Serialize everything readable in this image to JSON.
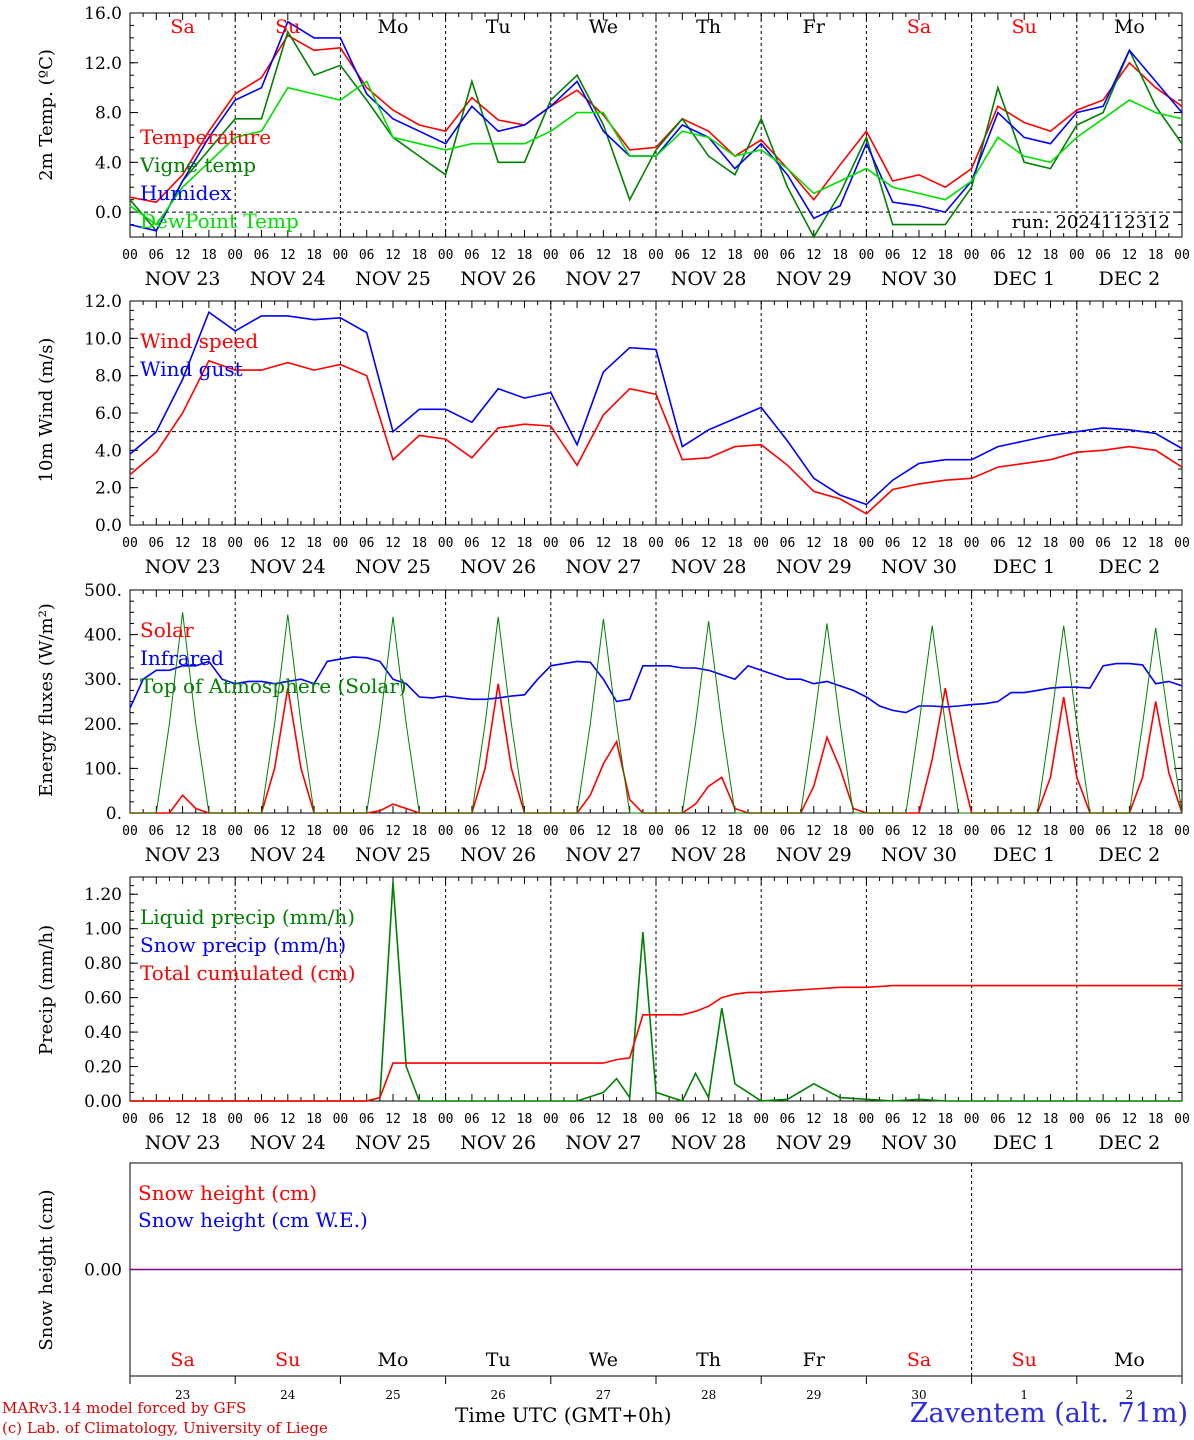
{
  "days_top": [
    "Sa",
    "Su",
    "Mo",
    "Tu",
    "We",
    "Th",
    "Fr",
    "Sa",
    "Su",
    "Mo"
  ],
  "days_weekend": [
    true,
    true,
    false,
    false,
    false,
    false,
    false,
    true,
    true,
    false
  ],
  "date_labels": [
    "NOV 23",
    "NOV 24",
    "NOV 25",
    "NOV 26",
    "NOV 27",
    "NOV 28",
    "NOV 29",
    "NOV 30",
    "DEC  1",
    "DEC  2"
  ],
  "hour_ticks": [
    "00",
    "06",
    "12",
    "18"
  ],
  "hour_end": "00",
  "bottom_day_numbers": [
    "23",
    "24",
    "25",
    "26",
    "27",
    "28",
    "29",
    "30",
    "1",
    "2"
  ],
  "colors": {
    "red": "#ff0000",
    "green": "#008000",
    "blue": "#0000ff",
    "lightgreen": "#00e000",
    "purple": "#800080"
  },
  "footer": {
    "model": "MARv3.14 model forced by GFS",
    "lab": "(c) Lab. of Climatology, University of Liege",
    "axis": "Time UTC (GMT+0h)",
    "station": "Zaventem (alt. 71m)"
  },
  "chart_data": [
    {
      "type": "line",
      "ylabel": "2m Temp. (ºC)",
      "ylim": [
        -2,
        16
      ],
      "yticks": [
        "16.0",
        "12.0",
        "8.0",
        "4.0",
        "0.0"
      ],
      "ytick_values": [
        16,
        12,
        8,
        4,
        0
      ],
      "refline": 0,
      "annotation": "run: 2024112312",
      "x_hours": [
        0,
        6,
        12,
        18,
        24,
        30,
        36,
        42,
        48,
        54,
        60,
        66,
        72,
        78,
        84,
        90,
        96,
        102,
        108,
        114,
        120,
        126,
        132,
        138,
        144,
        150,
        156,
        162,
        168,
        174,
        180,
        186,
        192,
        198,
        204,
        210,
        216,
        222,
        228,
        234,
        240
      ],
      "series": [
        {
          "name": "Temperature",
          "color": "red",
          "values": [
            1.2,
            0.8,
            3.0,
            6.5,
            9.5,
            10.8,
            14.2,
            13.0,
            13.2,
            10.0,
            8.2,
            7.0,
            6.5,
            9.2,
            7.4,
            7.0,
            8.5,
            9.8,
            7.8,
            5.0,
            5.2,
            7.5,
            6.5,
            4.5,
            5.8,
            3.5,
            1.0,
            3.8,
            6.5,
            2.5,
            3.0,
            2.0,
            3.5,
            8.5,
            7.2,
            6.5,
            8.2,
            9.0,
            12.0,
            10.0,
            8.5
          ]
        },
        {
          "name": "Vigne temp",
          "color": "green",
          "values": [
            1.0,
            -1.5,
            2.5,
            5.0,
            7.5,
            7.5,
            14.5,
            11.0,
            11.8,
            9.0,
            6.0,
            4.5,
            3.0,
            10.5,
            4.0,
            4.0,
            9.0,
            11.0,
            7.0,
            1.0,
            5.0,
            7.5,
            4.5,
            3.0,
            7.5,
            2.0,
            -2.0,
            1.5,
            6.0,
            -1.0,
            -1.0,
            -1.0,
            2.0,
            10.0,
            4.0,
            3.5,
            7.0,
            8.0,
            13.0,
            8.5,
            5.5
          ]
        },
        {
          "name": "Humidex",
          "color": "blue",
          "values": [
            -1.0,
            -1.5,
            2.5,
            6.0,
            9.0,
            10.0,
            15.3,
            14.0,
            14.0,
            9.5,
            7.5,
            6.5,
            5.5,
            8.5,
            6.5,
            7.0,
            8.5,
            10.5,
            6.5,
            4.5,
            4.5,
            7.0,
            6.0,
            3.5,
            5.5,
            3.0,
            -0.5,
            0.5,
            5.5,
            0.8,
            0.5,
            0.0,
            2.5,
            8.0,
            6.0,
            5.5,
            8.0,
            8.5,
            13.0,
            10.5,
            8.0
          ]
        },
        {
          "name": "DewPoint Temp",
          "color": "lightgreen",
          "values": [
            0.5,
            -1.0,
            2.0,
            4.0,
            6.0,
            6.5,
            10.0,
            9.5,
            9.0,
            10.5,
            6.0,
            5.5,
            5.0,
            5.5,
            5.5,
            5.5,
            6.5,
            8.0,
            8.0,
            4.5,
            4.5,
            6.5,
            6.0,
            4.5,
            5.0,
            3.5,
            1.5,
            2.5,
            3.5,
            2.0,
            1.5,
            1.0,
            2.5,
            6.0,
            4.5,
            4.0,
            6.0,
            7.5,
            9.0,
            8.0,
            7.5
          ]
        }
      ]
    },
    {
      "type": "line",
      "ylabel": "10m Wind (m/s)",
      "ylim": [
        0,
        12
      ],
      "yticks": [
        "12.0",
        "10.0",
        "8.0",
        "6.0",
        "4.0",
        "2.0",
        "0.0"
      ],
      "ytick_values": [
        12,
        10,
        8,
        6,
        4,
        2,
        0
      ],
      "refline": 5,
      "x_hours": [
        0,
        6,
        12,
        18,
        24,
        30,
        36,
        42,
        48,
        54,
        60,
        66,
        72,
        78,
        84,
        90,
        96,
        102,
        108,
        114,
        120,
        126,
        132,
        138,
        144,
        150,
        156,
        162,
        168,
        174,
        180,
        186,
        192,
        198,
        204,
        210,
        216,
        222,
        228,
        234,
        240
      ],
      "series": [
        {
          "name": "Wind speed",
          "color": "red",
          "values": [
            2.7,
            3.9,
            6.0,
            8.8,
            8.3,
            8.3,
            8.7,
            8.3,
            8.6,
            8.0,
            3.5,
            4.8,
            4.6,
            3.6,
            5.2,
            5.4,
            5.3,
            3.2,
            5.9,
            7.3,
            7.0,
            3.5,
            3.6,
            4.2,
            4.3,
            3.2,
            1.8,
            1.4,
            0.6,
            1.9,
            2.2,
            2.4,
            2.5,
            3.1,
            3.3,
            3.5,
            3.9,
            4.0,
            4.2,
            4.0,
            3.1
          ]
        },
        {
          "name": "Wind gust",
          "color": "blue",
          "values": [
            3.8,
            5.0,
            7.8,
            11.4,
            10.4,
            11.2,
            11.2,
            11.0,
            11.1,
            10.3,
            5.0,
            6.2,
            6.2,
            5.5,
            7.3,
            6.8,
            7.1,
            4.3,
            8.2,
            9.5,
            9.4,
            4.2,
            5.1,
            5.7,
            6.3,
            4.5,
            2.5,
            1.6,
            1.1,
            2.4,
            3.3,
            3.5,
            3.5,
            4.2,
            4.5,
            4.8,
            5.0,
            5.2,
            5.1,
            4.9,
            4.1
          ]
        }
      ]
    },
    {
      "type": "line",
      "ylabel": "Energy fluxes (W/m²)",
      "ylim": [
        0,
        500
      ],
      "yticks": [
        "500.",
        "400.",
        "300.",
        "200.",
        "100.",
        "0."
      ],
      "ytick_values": [
        500,
        400,
        300,
        200,
        100,
        0
      ],
      "x_hours": [
        0,
        3,
        6,
        9,
        12,
        15,
        18,
        21,
        24,
        27,
        30,
        33,
        36,
        39,
        42,
        45,
        48,
        51,
        54,
        57,
        60,
        63,
        66,
        69,
        72,
        75,
        78,
        81,
        84,
        87,
        90,
        93,
        96,
        99,
        102,
        105,
        108,
        111,
        114,
        117,
        120,
        123,
        126,
        129,
        132,
        135,
        138,
        141,
        144,
        147,
        150,
        153,
        156,
        159,
        162,
        165,
        168,
        171,
        174,
        177,
        180,
        183,
        186,
        189,
        192,
        195,
        198,
        201,
        204,
        207,
        210,
        213,
        216,
        219,
        222,
        225,
        228,
        231,
        234,
        237,
        240
      ],
      "series": [
        {
          "name": "Solar",
          "color": "red",
          "values": [
            0,
            0,
            0,
            0,
            40,
            10,
            0,
            0,
            0,
            0,
            0,
            100,
            280,
            100,
            0,
            0,
            0,
            0,
            0,
            5,
            20,
            10,
            0,
            0,
            0,
            0,
            0,
            100,
            290,
            100,
            0,
            0,
            0,
            0,
            0,
            40,
            110,
            160,
            30,
            0,
            0,
            0,
            0,
            20,
            60,
            80,
            10,
            0,
            0,
            0,
            0,
            0,
            60,
            170,
            100,
            10,
            0,
            0,
            0,
            0,
            0,
            120,
            280,
            120,
            0,
            0,
            0,
            0,
            0,
            0,
            80,
            260,
            80,
            0,
            0,
            0,
            0,
            80,
            250,
            90,
            0
          ]
        },
        {
          "name": "Infrared",
          "color": "blue",
          "values": [
            235,
            300,
            320,
            320,
            330,
            330,
            340,
            300,
            290,
            295,
            295,
            290,
            295,
            300,
            290,
            340,
            345,
            350,
            348,
            340,
            300,
            290,
            260,
            258,
            262,
            258,
            255,
            255,
            258,
            262,
            265,
            300,
            330,
            335,
            340,
            338,
            300,
            250,
            255,
            330,
            330,
            330,
            325,
            325,
            320,
            310,
            300,
            330,
            320,
            310,
            300,
            300,
            290,
            295,
            285,
            275,
            260,
            240,
            230,
            225,
            240,
            240,
            238,
            240,
            243,
            245,
            250,
            270,
            270,
            275,
            280,
            282,
            282,
            280,
            330,
            335,
            335,
            332,
            290,
            295,
            285
          ]
        },
        {
          "name": "Top of Atmosphere (Solar)",
          "color": "green",
          "values": [
            0,
            0,
            0,
            200,
            450,
            200,
            0,
            0,
            0,
            0,
            0,
            200,
            445,
            200,
            0,
            0,
            0,
            0,
            0,
            200,
            440,
            200,
            0,
            0,
            0,
            0,
            0,
            200,
            440,
            200,
            0,
            0,
            0,
            0,
            0,
            200,
            435,
            200,
            0,
            0,
            0,
            0,
            0,
            200,
            430,
            200,
            0,
            0,
            0,
            0,
            0,
            0,
            200,
            425,
            200,
            0,
            0,
            0,
            0,
            0,
            200,
            420,
            200,
            0,
            0,
            0,
            0,
            0,
            0,
            0,
            200,
            420,
            200,
            0,
            0,
            0,
            0,
            200,
            415,
            200,
            0
          ]
        }
      ]
    },
    {
      "type": "line",
      "ylabel": "Precip (mm/h)",
      "ylim": [
        0,
        1.3
      ],
      "yticks": [
        "1.20",
        "1.00",
        "0.80",
        "0.60",
        "0.40",
        "0.20",
        "0.00"
      ],
      "ytick_values": [
        1.2,
        1.0,
        0.8,
        0.6,
        0.4,
        0.2,
        0
      ],
      "x_hours": [
        0,
        6,
        12,
        18,
        24,
        30,
        36,
        42,
        48,
        54,
        57,
        60,
        63,
        66,
        72,
        78,
        84,
        90,
        96,
        102,
        108,
        111,
        114,
        117,
        120,
        126,
        129,
        132,
        135,
        138,
        141,
        144,
        150,
        156,
        162,
        168,
        174,
        180,
        186,
        192,
        198,
        204,
        210,
        216,
        222,
        228,
        234,
        240
      ],
      "series": [
        {
          "name": "Liquid precip (mm/h)",
          "color": "green",
          "values": [
            0,
            0,
            0,
            0,
            0,
            0,
            0,
            0,
            0,
            0,
            0.02,
            1.27,
            0.2,
            0,
            0,
            0,
            0,
            0,
            0,
            0,
            0.05,
            0.13,
            0.02,
            0.98,
            0.05,
            0,
            0.16,
            0.02,
            0.54,
            0.1,
            0.05,
            0,
            0.01,
            0.1,
            0.02,
            0.01,
            0,
            0.01,
            0,
            0,
            0,
            0,
            0,
            0,
            0,
            0,
            0,
            0
          ]
        },
        {
          "name": "Snow precip (mm/h)",
          "color": "blue",
          "values": [
            0,
            0,
            0,
            0,
            0,
            0,
            0,
            0,
            0,
            0,
            0,
            0,
            0,
            0,
            0,
            0,
            0,
            0,
            0,
            0,
            0,
            0,
            0,
            0,
            0,
            0,
            0,
            0,
            0,
            0,
            0,
            0,
            0,
            0,
            0,
            0,
            0,
            0,
            0,
            0,
            0,
            0,
            0,
            0,
            0,
            0,
            0,
            0
          ]
        },
        {
          "name": "Total cumulated (cm)",
          "color": "red",
          "values": [
            0,
            0,
            0,
            0,
            0,
            0,
            0,
            0,
            0,
            0,
            0.02,
            0.22,
            0.22,
            0.22,
            0.22,
            0.22,
            0.22,
            0.22,
            0.22,
            0.22,
            0.22,
            0.24,
            0.25,
            0.5,
            0.5,
            0.5,
            0.52,
            0.55,
            0.6,
            0.62,
            0.63,
            0.63,
            0.64,
            0.65,
            0.66,
            0.66,
            0.67,
            0.67,
            0.67,
            0.67,
            0.67,
            0.67,
            0.67,
            0.67,
            0.67,
            0.67,
            0.67,
            0.67
          ]
        }
      ]
    },
    {
      "type": "line",
      "ylabel": "Snow height (cm)",
      "ylim": [
        -1,
        1
      ],
      "yticks": [
        "0.00"
      ],
      "ytick_values": [
        0
      ],
      "x_hours": [
        0,
        240
      ],
      "series": [
        {
          "name": "Snow height (cm)",
          "color": "red",
          "values": [
            0,
            0
          ]
        },
        {
          "name": "Snow height (cm W.E.)",
          "color": "blue",
          "values": [
            0,
            0
          ]
        }
      ]
    }
  ]
}
